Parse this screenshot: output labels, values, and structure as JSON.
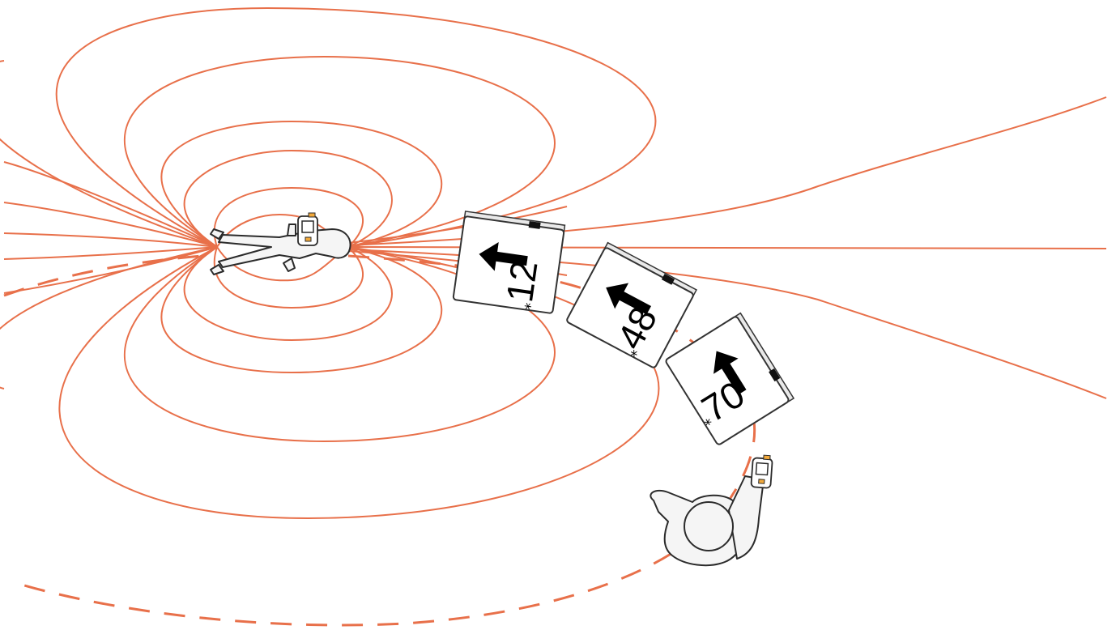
{
  "colors": {
    "field_line": "#e8704a",
    "dashed_path": "#e8704a",
    "panel_marker": "#111111",
    "beacon_led": "#f2a93b"
  },
  "icons": {
    "buried_person": "buried-person-icon",
    "searcher": "searcher-icon",
    "transceiver": "avalanche-transceiver-icon",
    "direction_arrow": "arrow-up-icon"
  },
  "display_panels": [
    {
      "distance": "12",
      "star": "*"
    },
    {
      "distance": "48",
      "star": "*"
    },
    {
      "distance": "70",
      "star": "*"
    }
  ]
}
